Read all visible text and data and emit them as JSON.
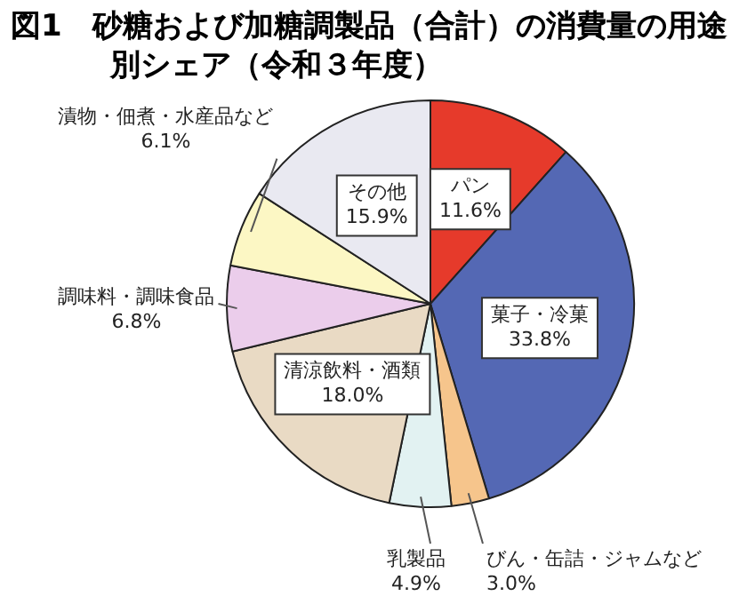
{
  "chart_data": {
    "type": "pie",
    "title": "図1　砂糖および加糖調製品（合計）の消費量の用途別シェア（令和３年度）",
    "categories": [
      "パン",
      "菓子・冷菓",
      "びん・缶詰・ジャムなど",
      "乳製品",
      "清涼飲料・酒類",
      "調味料・調味食品",
      "漬物・佃煮・水産品など",
      "その他"
    ],
    "values": [
      11.6,
      33.8,
      3.0,
      4.9,
      18.0,
      6.8,
      6.1,
      15.9
    ],
    "colors": [
      "#e63a2b",
      "#5468b4",
      "#f6c58c",
      "#e2f2f2",
      "#e9dac4",
      "#ebcdeb",
      "#fcf7c4",
      "#e9e9f1"
    ],
    "value_labels": [
      "11.6%",
      "33.8%",
      "3.0%",
      "4.9%",
      "18.0%",
      "6.8%",
      "6.1%",
      "15.9%"
    ],
    "legend": false
  }
}
